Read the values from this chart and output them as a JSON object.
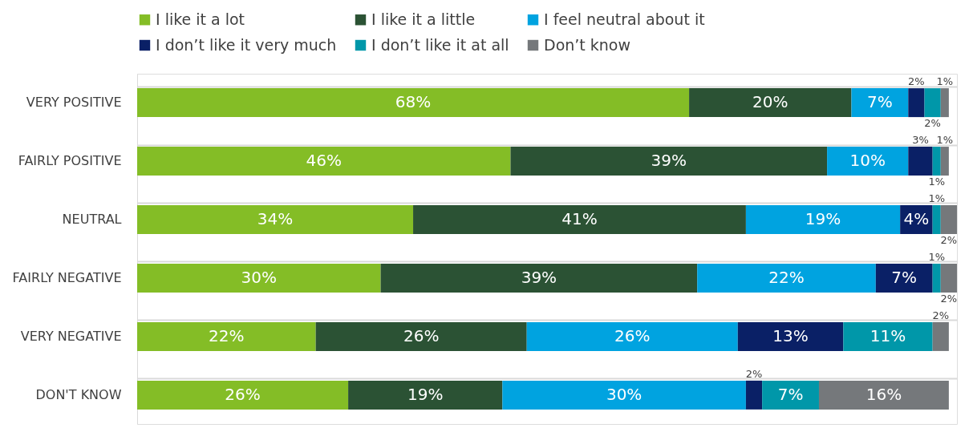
{
  "chart_data": {
    "type": "bar",
    "orientation": "horizontal",
    "stacked": true,
    "legend": "top",
    "grid": "y",
    "tick_labels": "y",
    "categories": [
      "VERY POSITIVE",
      "FAIRLY POSITIVE",
      "NEUTRAL",
      "FAIRLY NEGATIVE",
      "VERY NEGATIVE",
      "DON'T KNOW"
    ],
    "series": [
      {
        "name": "I like it a lot",
        "color": "#84bd26",
        "values": [
          68,
          46,
          34,
          30,
          22,
          26
        ],
        "value_labels": [
          "68%",
          "46%",
          "34%",
          "30%",
          "22%",
          "26%"
        ]
      },
      {
        "name": "I like it a little",
        "color": "#2b5234",
        "values": [
          20,
          39,
          41,
          39,
          26,
          19
        ],
        "value_labels": [
          "20%",
          "39%",
          "41%",
          "39%",
          "26%",
          "19%"
        ]
      },
      {
        "name": "I feel neutral about it",
        "color": "#00a3e0",
        "values": [
          7,
          10,
          19,
          22,
          26,
          30
        ],
        "value_labels": [
          "7%",
          "10%",
          "19%",
          "22%",
          "26%",
          "30%"
        ]
      },
      {
        "name": "I don’t like it very much",
        "color": "#0a2066",
        "values": [
          2,
          3,
          4,
          7,
          13,
          2
        ],
        "value_labels": [
          "2%",
          "3%",
          "4%",
          "7%",
          "13%",
          "2%"
        ]
      },
      {
        "name": "I don’t like it at all",
        "color": "#0097a9",
        "values": [
          2,
          1,
          1,
          1,
          11,
          7
        ],
        "value_labels": [
          "2%",
          "1%",
          "1%",
          "1%",
          "11%",
          "7%"
        ]
      },
      {
        "name": "Don’t know",
        "color": "#75787b",
        "values": [
          1,
          1,
          2,
          2,
          2,
          16
        ],
        "value_labels": [
          "1%",
          "1%",
          "2%",
          "2%",
          "2%",
          "16%"
        ]
      }
    ]
  }
}
